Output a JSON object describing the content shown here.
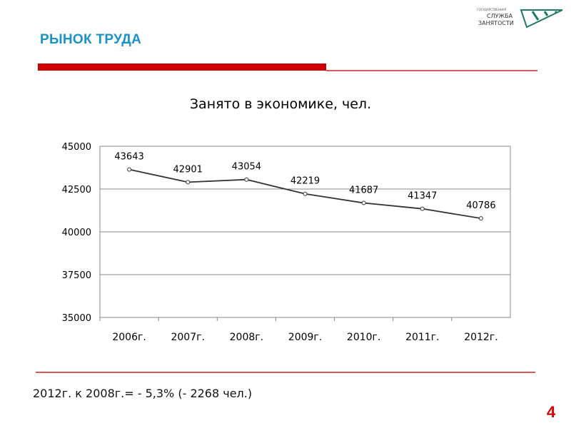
{
  "header": {
    "title": "РЫНОК ТРУДА",
    "logo_text": [
      "ГОСУДАРСТВЕННАЯ",
      "СЛУЖБА",
      "ЗАНЯТОСТИ"
    ]
  },
  "footer": {
    "note": "2012г. к 2008г.= - 5,3% (- 2268 чел.)",
    "page_number": "4"
  },
  "colors": {
    "accent": "#1a93c6",
    "red": "#cc0000",
    "line": "#333333",
    "logo": "#1f7a66"
  },
  "chart_data": {
    "type": "line",
    "title": "Занято в экономике, чел.",
    "categories": [
      "2006г.",
      "2007г.",
      "2008г.",
      "2009г.",
      "2010г.",
      "2011г.",
      "2012г."
    ],
    "values": [
      43643,
      42901,
      43054,
      42219,
      41687,
      41347,
      40786
    ],
    "data_labels": [
      "43643",
      "42901",
      "43054",
      "42219",
      "41687",
      "41347",
      "40786"
    ],
    "ylim": [
      35000,
      45000
    ],
    "yticks": [
      "35000",
      "37500",
      "40000",
      "42500",
      "45000"
    ],
    "grid": true,
    "legend": "none",
    "xlabel": "",
    "ylabel": ""
  }
}
